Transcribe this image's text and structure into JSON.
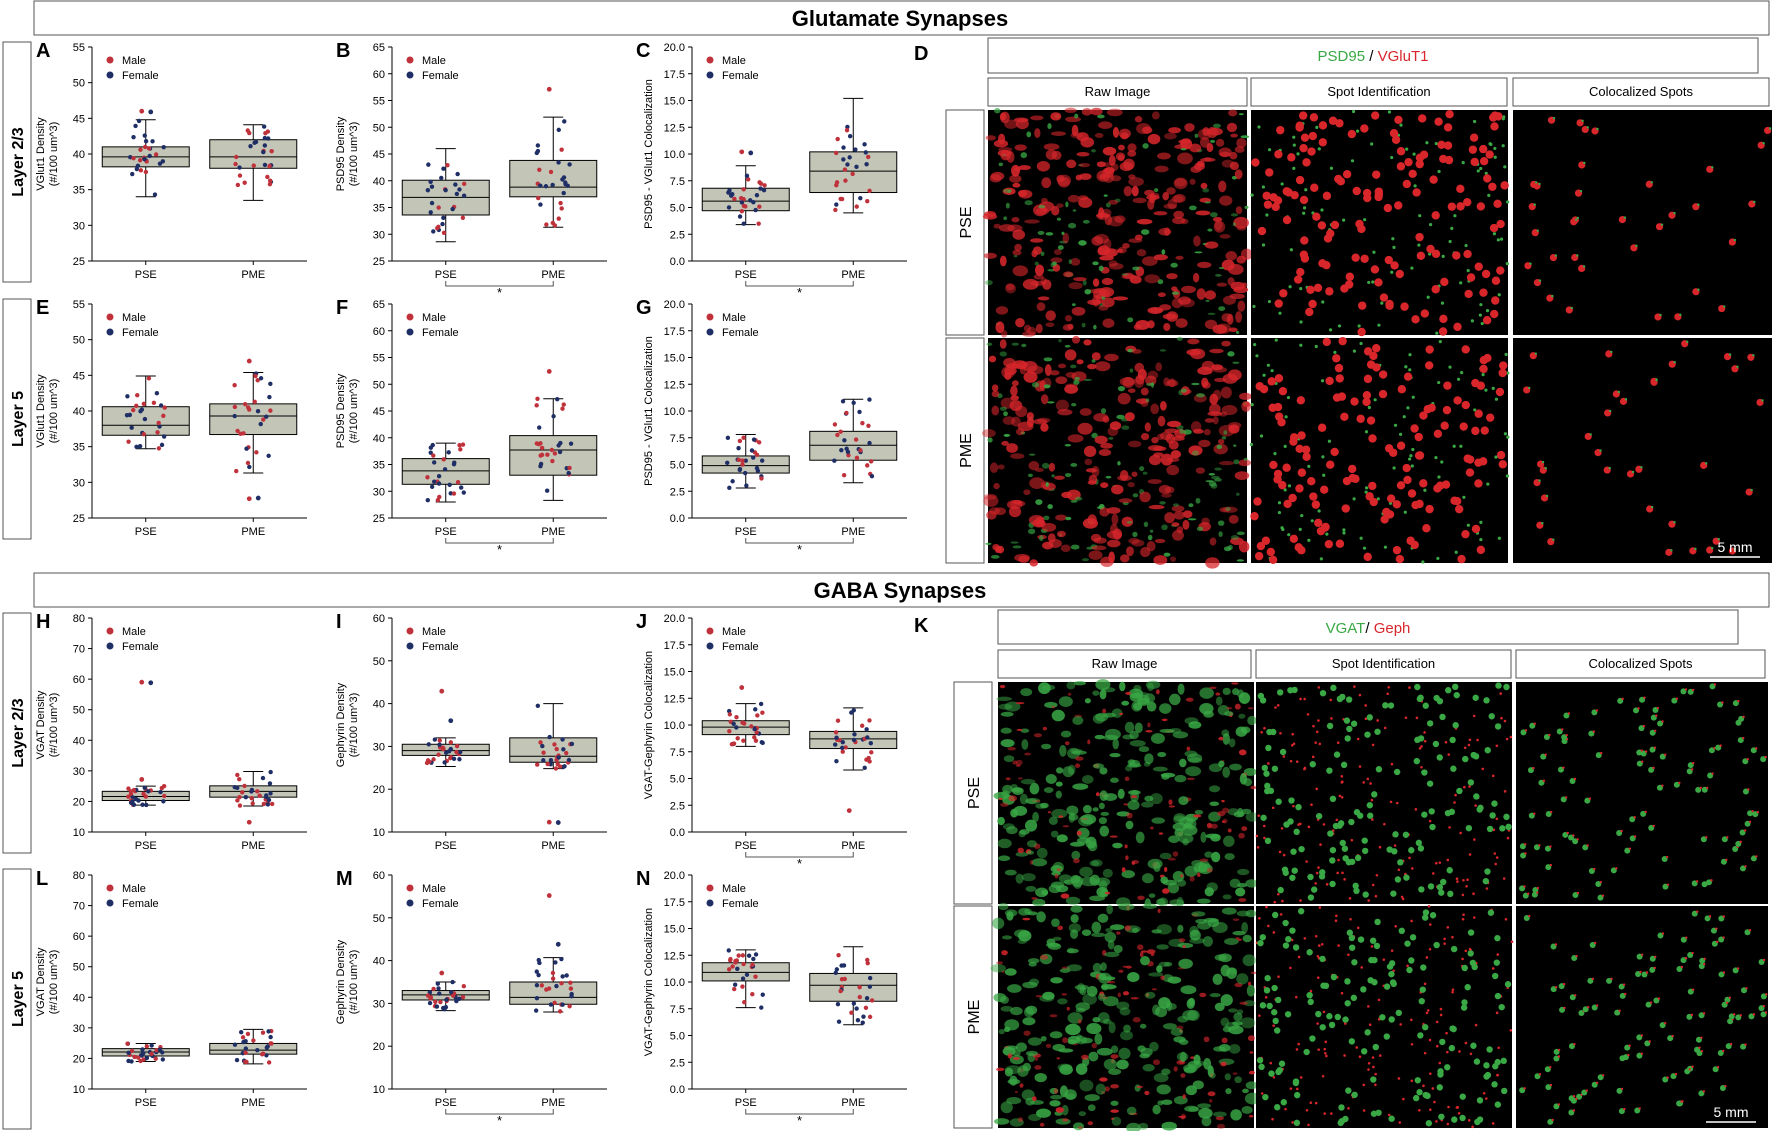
{
  "colors": {
    "box_fill": "#c3c5b7",
    "male": "#c0323b",
    "female": "#1f2f66",
    "green": "#39a845",
    "red": "#d8262b",
    "micro_bg": "#000000"
  },
  "sections": {
    "glutamate": {
      "title": "Glutamate Synapses",
      "rows": [
        "Layer 2/3",
        "Layer 5"
      ]
    },
    "gaba": {
      "title": "GABA Synapses",
      "rows": [
        "Layer 2/3",
        "Layer 5"
      ]
    }
  },
  "legend": {
    "male": "Male",
    "female": "Female"
  },
  "micrographs": [
    {
      "letter": "D",
      "header_green": "PSD95",
      "header_sep": " / ",
      "header_red": "VGluT1",
      "columns": [
        "Raw Image",
        "Spot Identification",
        "Colocalized Spots"
      ],
      "rows": [
        "PSE",
        "PME"
      ],
      "scale_bar": "5 mm"
    },
    {
      "letter": "K",
      "header_green": "VGAT",
      "header_sep": "/ ",
      "header_red": "Geph",
      "columns": [
        "Raw Image",
        "Spot Identification",
        "Colocalized Spots"
      ],
      "rows": [
        "PSE",
        "PME"
      ],
      "scale_bar": "5 mm"
    }
  ],
  "chart_data": [
    {
      "letter": "A",
      "type": "box",
      "categories": [
        "PSE",
        "PME"
      ],
      "ylabel": "VGlut1 Density\n(#/100 um^3)",
      "ylim": [
        25,
        55
      ],
      "yticks": [
        25,
        30,
        35,
        40,
        45,
        50,
        55
      ],
      "significance": "",
      "series": [
        {
          "name": "PSE",
          "whisker_low": 34.0,
          "q1": 38.2,
          "median": 39.6,
          "q3": 41.0,
          "whisker_high": 44.8,
          "outliers": [
            46.0,
            45.9
          ]
        },
        {
          "name": "PME",
          "whisker_low": 33.5,
          "q1": 38.0,
          "median": 39.6,
          "q3": 42.0,
          "whisker_high": 44.1,
          "outliers": []
        }
      ]
    },
    {
      "letter": "B",
      "type": "box",
      "categories": [
        "PSE",
        "PME"
      ],
      "ylabel": "PSD95 Density\n(#/100 um^3)",
      "ylim": [
        25,
        65
      ],
      "yticks": [
        25,
        30,
        35,
        40,
        45,
        50,
        55,
        60,
        65
      ],
      "significance": "*",
      "series": [
        {
          "name": "PSE",
          "whisker_low": 28.6,
          "q1": 33.6,
          "median": 36.9,
          "q3": 40.1,
          "whisker_high": 46.0,
          "outliers": []
        },
        {
          "name": "PME",
          "whisker_low": 31.3,
          "q1": 37.0,
          "median": 38.8,
          "q3": 43.8,
          "whisker_high": 51.9,
          "outliers": [
            57.1
          ]
        }
      ]
    },
    {
      "letter": "C",
      "type": "box",
      "categories": [
        "PSE",
        "PME"
      ],
      "ylabel": "PSD95 - VGlut1 Colocalization",
      "ylim": [
        0,
        20
      ],
      "yticks": [
        0.0,
        2.5,
        5.0,
        7.5,
        10.0,
        12.5,
        15.0,
        17.5,
        20.0
      ],
      "significance": "*",
      "series": [
        {
          "name": "PSE",
          "whisker_low": 3.4,
          "q1": 4.7,
          "median": 5.6,
          "q3": 6.8,
          "whisker_high": 8.9,
          "outliers": [
            10.2,
            10.1
          ]
        },
        {
          "name": "PME",
          "whisker_low": 4.5,
          "q1": 6.4,
          "median": 8.4,
          "q3": 10.2,
          "whisker_high": 15.2,
          "outliers": []
        }
      ]
    },
    {
      "letter": "E",
      "type": "box",
      "categories": [
        "PSE",
        "PME"
      ],
      "ylabel": "VGlut1 Density\n(#/100 um^3)",
      "ylim": [
        25,
        55
      ],
      "yticks": [
        25,
        30,
        35,
        40,
        45,
        50,
        55
      ],
      "significance": "",
      "series": [
        {
          "name": "PSE",
          "whisker_low": 34.7,
          "q1": 36.6,
          "median": 38.0,
          "q3": 40.6,
          "whisker_high": 44.9,
          "outliers": []
        },
        {
          "name": "PME",
          "whisker_low": 31.3,
          "q1": 36.7,
          "median": 39.3,
          "q3": 41.0,
          "whisker_high": 45.4,
          "outliers": [
            47.0,
            27.8,
            27.7
          ]
        }
      ]
    },
    {
      "letter": "F",
      "type": "box",
      "categories": [
        "PSE",
        "PME"
      ],
      "ylabel": "PSD95 Density\n(#/100 um^3)",
      "ylim": [
        25,
        65
      ],
      "yticks": [
        25,
        30,
        35,
        40,
        45,
        50,
        55,
        60,
        65
      ],
      "significance": "*",
      "series": [
        {
          "name": "PSE",
          "whisker_low": 28.0,
          "q1": 31.3,
          "median": 33.8,
          "q3": 36.1,
          "whisker_high": 39.0,
          "outliers": []
        },
        {
          "name": "PME",
          "whisker_low": 28.3,
          "q1": 33.0,
          "median": 37.7,
          "q3": 40.4,
          "whisker_high": 47.3,
          "outliers": [
            52.4
          ]
        }
      ]
    },
    {
      "letter": "G",
      "type": "box",
      "categories": [
        "PSE",
        "PME"
      ],
      "ylabel": "PSD95 - VGlut1 Colocalization",
      "ylim": [
        0,
        20
      ],
      "yticks": [
        0.0,
        2.5,
        5.0,
        7.5,
        10.0,
        12.5,
        15.0,
        17.5,
        20.0
      ],
      "significance": "*",
      "series": [
        {
          "name": "PSE",
          "whisker_low": 2.8,
          "q1": 4.2,
          "median": 4.9,
          "q3": 5.8,
          "whisker_high": 7.8,
          "outliers": []
        },
        {
          "name": "PME",
          "whisker_low": 3.3,
          "q1": 5.4,
          "median": 6.8,
          "q3": 8.1,
          "whisker_high": 11.1,
          "outliers": []
        }
      ]
    },
    {
      "letter": "H",
      "type": "box",
      "categories": [
        "PSE",
        "PME"
      ],
      "ylabel": "VGAT Density\n(#/100 um^3)",
      "ylim": [
        10,
        80
      ],
      "yticks": [
        10,
        20,
        30,
        40,
        50,
        60,
        70,
        80
      ],
      "significance": "",
      "series": [
        {
          "name": "PSE",
          "whisker_low": 18.8,
          "q1": 20.3,
          "median": 21.6,
          "q3": 23.3,
          "whisker_high": 25.0,
          "outliers": [
            59.0,
            58.8,
            27.2
          ]
        },
        {
          "name": "PME",
          "whisker_low": 18.5,
          "q1": 21.4,
          "median": 23.3,
          "q3": 25.1,
          "whisker_high": 29.8,
          "outliers": [
            13.2
          ]
        }
      ]
    },
    {
      "letter": "I",
      "type": "box",
      "categories": [
        "PSE",
        "PME"
      ],
      "ylabel": "Gephyrin Density\n(#/100 um^3)",
      "ylim": [
        10,
        60
      ],
      "yticks": [
        10,
        20,
        30,
        40,
        50,
        60
      ],
      "significance": "",
      "series": [
        {
          "name": "PSE",
          "whisker_low": 25.3,
          "q1": 27.9,
          "median": 29.0,
          "q3": 30.5,
          "whisker_high": 32.0,
          "outliers": [
            42.9,
            36.0
          ]
        },
        {
          "name": "PME",
          "whisker_low": 24.8,
          "q1": 26.3,
          "median": 27.7,
          "q3": 32.0,
          "whisker_high": 40.0,
          "outliers": [
            12.3,
            12.2
          ]
        }
      ]
    },
    {
      "letter": "J",
      "type": "box",
      "categories": [
        "PSE",
        "PME"
      ],
      "ylabel": "VGAT-Gephyrin Colocalization",
      "ylim": [
        0,
        20
      ],
      "yticks": [
        0.0,
        2.5,
        5.0,
        7.5,
        10.0,
        12.5,
        15.0,
        17.5,
        20.0
      ],
      "significance": "*",
      "series": [
        {
          "name": "PSE",
          "whisker_low": 8.0,
          "q1": 9.1,
          "median": 9.8,
          "q3": 10.4,
          "whisker_high": 12.0,
          "outliers": [
            13.5
          ]
        },
        {
          "name": "PME",
          "whisker_low": 5.8,
          "q1": 7.8,
          "median": 8.7,
          "q3": 9.4,
          "whisker_high": 11.6,
          "outliers": [
            2.0
          ]
        }
      ]
    },
    {
      "letter": "L",
      "type": "box",
      "categories": [
        "PSE",
        "PME"
      ],
      "ylabel": "VGAT Density\n(#/100 um^3)",
      "ylim": [
        10,
        80
      ],
      "yticks": [
        10,
        20,
        30,
        40,
        50,
        60,
        70,
        80
      ],
      "significance": "",
      "series": [
        {
          "name": "PSE",
          "whisker_low": 19.0,
          "q1": 20.8,
          "median": 22.1,
          "q3": 23.2,
          "whisker_high": 24.9,
          "outliers": []
        },
        {
          "name": "PME",
          "whisker_low": 18.2,
          "q1": 21.4,
          "median": 22.7,
          "q3": 24.9,
          "whisker_high": 29.5,
          "outliers": []
        }
      ]
    },
    {
      "letter": "M",
      "type": "box",
      "categories": [
        "PSE",
        "PME"
      ],
      "ylabel": "Gephyrin Density\n(#/100 um^3)",
      "ylim": [
        10,
        60
      ],
      "yticks": [
        10,
        20,
        30,
        40,
        50,
        60
      ],
      "significance": "*",
      "series": [
        {
          "name": "PSE",
          "whisker_low": 28.3,
          "q1": 30.8,
          "median": 32.0,
          "q3": 33.0,
          "whisker_high": 35.0,
          "outliers": [
            37.1
          ]
        },
        {
          "name": "PME",
          "whisker_low": 28.0,
          "q1": 29.8,
          "median": 31.4,
          "q3": 35.0,
          "whisker_high": 40.7,
          "outliers": [
            55.2,
            43.8
          ]
        }
      ]
    },
    {
      "letter": "N",
      "type": "box",
      "categories": [
        "PSE",
        "PME"
      ],
      "ylabel": "VGAT-Gephyrin Colocalization",
      "ylim": [
        0,
        20
      ],
      "yticks": [
        0.0,
        2.5,
        5.0,
        7.5,
        10.0,
        12.5,
        15.0,
        17.5,
        20.0
      ],
      "significance": "*",
      "series": [
        {
          "name": "PSE",
          "whisker_low": 7.6,
          "q1": 10.1,
          "median": 10.9,
          "q3": 11.8,
          "whisker_high": 13.0,
          "outliers": []
        },
        {
          "name": "PME",
          "whisker_low": 6.0,
          "q1": 8.2,
          "median": 9.7,
          "q3": 10.8,
          "whisker_high": 13.3,
          "outliers": []
        }
      ]
    }
  ]
}
